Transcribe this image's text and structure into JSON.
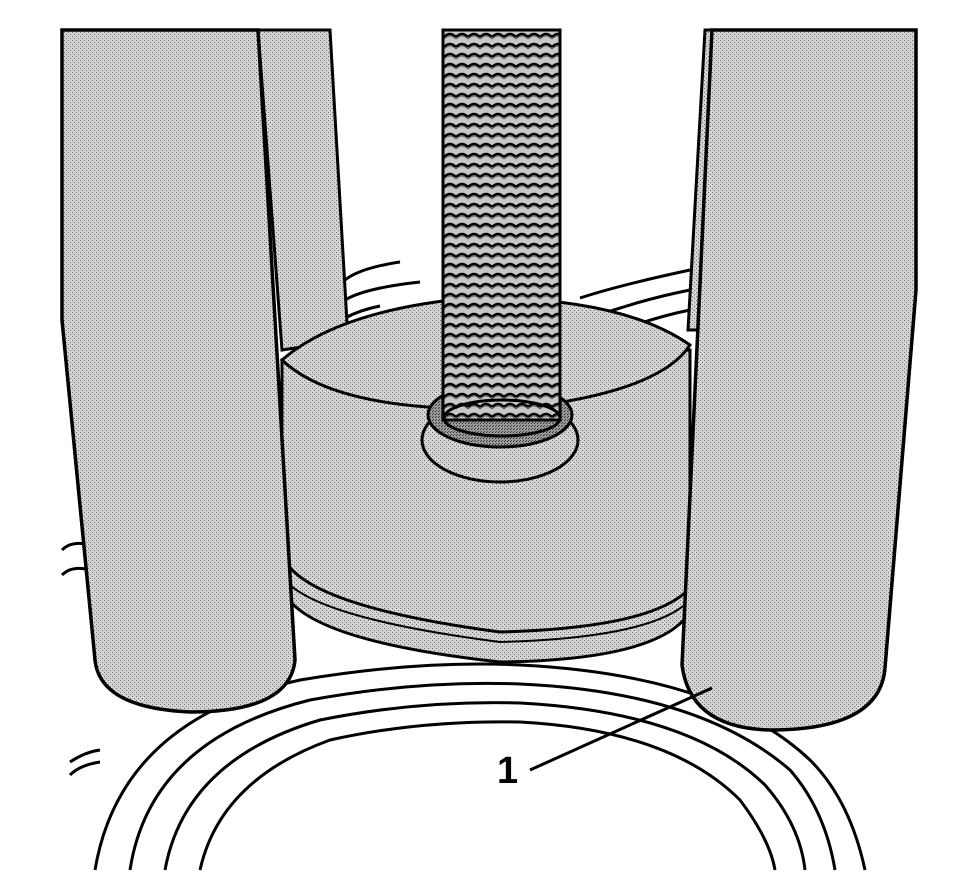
{
  "figure": {
    "callouts": [
      {
        "number": "1"
      }
    ]
  },
  "colors": {
    "ink": "#000000",
    "paper": "#ffffff",
    "shade_light": "#cfcfcf",
    "shade_dark": "#8a8a8a"
  }
}
